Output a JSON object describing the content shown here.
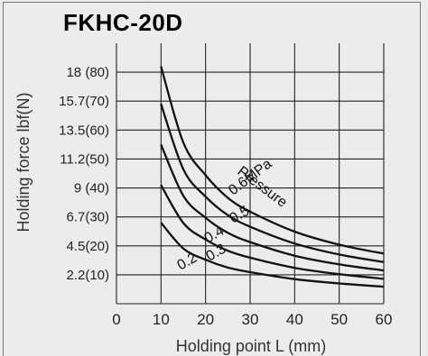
{
  "chart_data": {
    "type": "line",
    "title": "FKHC-20D",
    "xlabel": "Holding point L (mm)",
    "ylabel": "Holding force lbf(N)",
    "xlim": [
      0,
      60
    ],
    "ylim": [
      0,
      90
    ],
    "x_ticks": [
      0,
      10,
      20,
      30,
      40,
      50,
      60
    ],
    "y_ticks": [
      {
        "value": 10,
        "label": "2.2(10)"
      },
      {
        "value": 20,
        "label": "4.5(20)"
      },
      {
        "value": 30,
        "label": "6.7(30)"
      },
      {
        "value": 40,
        "label": "9 (40)"
      },
      {
        "value": 50,
        "label": "11.2(50)"
      },
      {
        "value": 60,
        "label": "13.5(60)"
      },
      {
        "value": 70,
        "label": "15.7(70)"
      },
      {
        "value": 80,
        "label": "18 (80)"
      }
    ],
    "grid": true,
    "series": [
      {
        "name": "0.6MPa",
        "x": [
          10,
          15,
          20,
          25,
          30,
          40,
          50,
          60
        ],
        "y": [
          82,
          55.7,
          44.4,
          36.6,
          31.8,
          24.9,
          20.4,
          17.3
        ]
      },
      {
        "name": "0.5",
        "x": [
          10,
          15,
          20,
          25,
          30,
          40,
          50,
          60
        ],
        "y": [
          69,
          46.5,
          37,
          30.6,
          26.6,
          20.8,
          17,
          14.4
        ]
      },
      {
        "name": "0.4",
        "x": [
          10,
          15,
          20,
          25,
          30,
          40,
          50,
          60
        ],
        "y": [
          55,
          37.3,
          29.7,
          24.5,
          21.3,
          16.6,
          13.6,
          11.5
        ]
      },
      {
        "name": "0.3",
        "x": [
          10,
          15,
          20,
          25,
          30,
          40,
          50,
          60
        ],
        "y": [
          41,
          27.9,
          22.2,
          18.3,
          15.9,
          12.4,
          10.2,
          8.6
        ]
      },
      {
        "name": "0.2",
        "x": [
          10,
          15,
          20,
          25,
          30,
          40,
          50,
          60
        ],
        "y": [
          28,
          19.1,
          15.2,
          12.5,
          10.9,
          8.5,
          7,
          5.9
        ]
      }
    ],
    "annotations": [
      {
        "text": "Pressure"
      }
    ]
  }
}
